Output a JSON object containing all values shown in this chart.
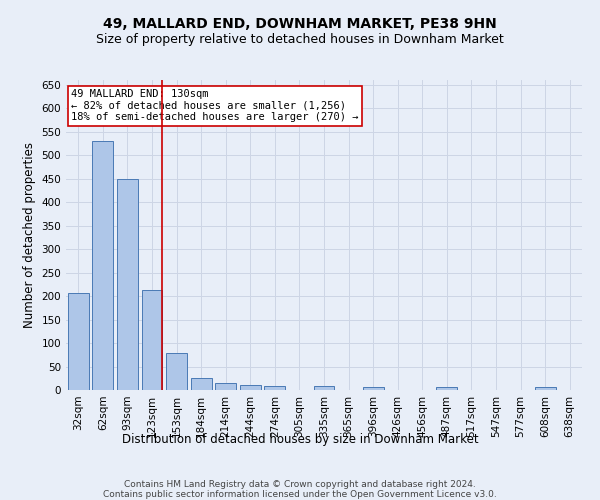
{
  "title": "49, MALLARD END, DOWNHAM MARKET, PE38 9HN",
  "subtitle": "Size of property relative to detached houses in Downham Market",
  "xlabel": "Distribution of detached houses by size in Downham Market",
  "ylabel": "Number of detached properties",
  "footer_line1": "Contains HM Land Registry data © Crown copyright and database right 2024.",
  "footer_line2": "Contains public sector information licensed under the Open Government Licence v3.0.",
  "categories": [
    "32sqm",
    "62sqm",
    "93sqm",
    "123sqm",
    "153sqm",
    "184sqm",
    "214sqm",
    "244sqm",
    "274sqm",
    "305sqm",
    "335sqm",
    "365sqm",
    "396sqm",
    "426sqm",
    "456sqm",
    "487sqm",
    "517sqm",
    "547sqm",
    "577sqm",
    "608sqm",
    "638sqm"
  ],
  "values": [
    207,
    530,
    450,
    213,
    78,
    26,
    14,
    11,
    8,
    0,
    8,
    0,
    6,
    0,
    0,
    6,
    0,
    0,
    0,
    6,
    0
  ],
  "bar_color": "#aec6e8",
  "bar_edge_color": "#4a7ab5",
  "highlight_bar_index": 3,
  "highlight_color": "#cc0000",
  "annotation_text": "49 MALLARD END: 130sqm\n← 82% of detached houses are smaller (1,256)\n18% of semi-detached houses are larger (270) →",
  "annotation_box_color": "#ffffff",
  "annotation_box_edge": "#cc0000",
  "ylim": [
    0,
    660
  ],
  "yticks": [
    0,
    50,
    100,
    150,
    200,
    250,
    300,
    350,
    400,
    450,
    500,
    550,
    600,
    650
  ],
  "grid_color": "#cdd5e5",
  "background_color": "#e8eef8",
  "title_fontsize": 10,
  "subtitle_fontsize": 9,
  "axis_label_fontsize": 8.5,
  "tick_fontsize": 7.5,
  "footer_fontsize": 6.5,
  "annotation_fontsize": 7.5
}
